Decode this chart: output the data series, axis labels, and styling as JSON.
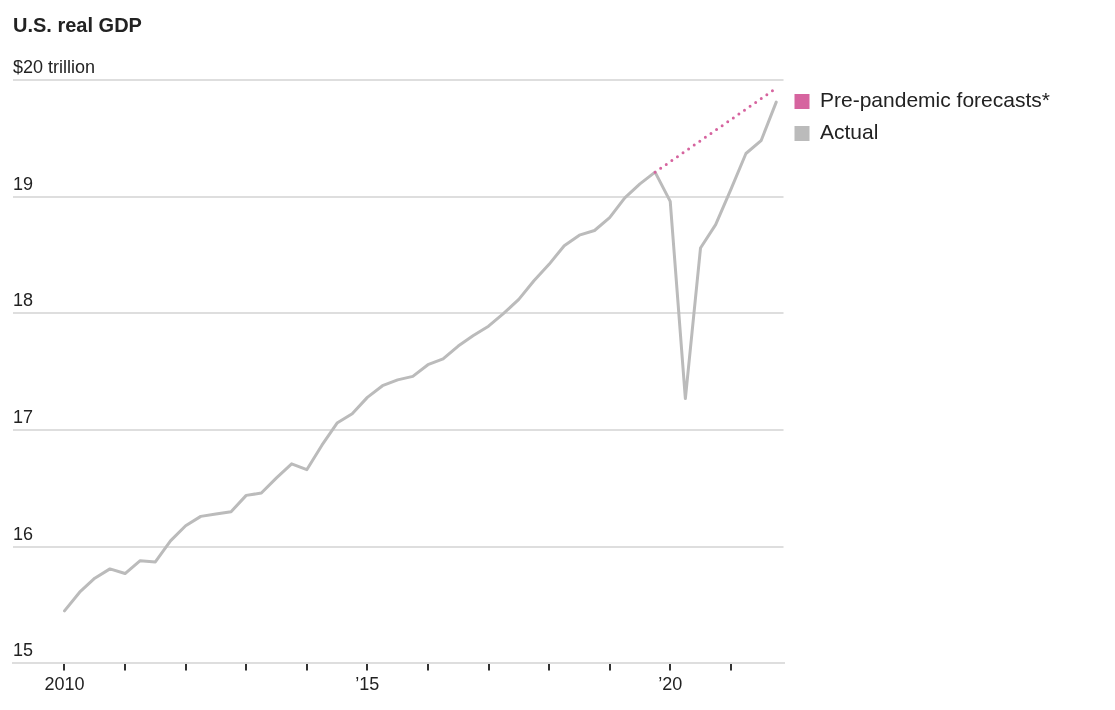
{
  "chart_data": {
    "type": "line",
    "title": "U.S. real GDP",
    "xlim": [
      2009.15,
      2021.87
    ],
    "xticks": [
      2010,
      {
        "value": 2011,
        "label": null
      },
      {
        "value": 2012,
        "label": null
      },
      {
        "value": 2013,
        "label": null
      },
      {
        "value": 2014,
        "label": null
      },
      {
        "value": 2015,
        "label": "’15"
      },
      {
        "value": 2016,
        "label": null
      },
      {
        "value": 2017,
        "label": null
      },
      {
        "value": 2018,
        "label": null
      },
      {
        "value": 2019,
        "label": null
      },
      {
        "value": 2020,
        "label": "’20"
      },
      {
        "value": 2021,
        "label": null
      }
    ],
    "ylim": [
      15,
      20
    ],
    "yticks": [
      15,
      16,
      17,
      18,
      19,
      {
        "value": 20,
        "label": "$20 trillion"
      }
    ],
    "grid": "y",
    "legend": "right",
    "marker": "none",
    "series": [
      {
        "name": "Pre-pandemic forecasts*",
        "color": "#d6649f",
        "line_style": "dotted",
        "x": [
          2019.75,
          2021.75
        ],
        "values": [
          19.21,
          19.93
        ]
      },
      {
        "name": "Actual",
        "color": "#bbbbbb",
        "line_style": "solid",
        "x": [
          2010,
          2010.25,
          2010.5,
          2010.75,
          2011,
          2011.25,
          2011.5,
          2011.75,
          2012,
          2012.25,
          2012.5,
          2012.75,
          2013,
          2013.25,
          2013.5,
          2013.75,
          2014,
          2014.25,
          2014.5,
          2014.75,
          2015,
          2015.25,
          2015.5,
          2015.75,
          2016,
          2016.25,
          2016.5,
          2016.75,
          2017,
          2017.25,
          2017.5,
          2017.75,
          2018,
          2018.25,
          2018.5,
          2018.75,
          2019,
          2019.25,
          2019.5,
          2019.75,
          2020,
          2020.25,
          2020.5,
          2020.75,
          2021,
          2021.25,
          2021.5,
          2021.75
        ],
        "values": [
          15.45,
          15.61,
          15.73,
          15.81,
          15.77,
          15.88,
          15.87,
          16.05,
          16.18,
          16.26,
          16.28,
          16.3,
          16.44,
          16.46,
          16.59,
          16.71,
          16.66,
          16.87,
          17.06,
          17.14,
          17.28,
          17.38,
          17.43,
          17.46,
          17.56,
          17.61,
          17.72,
          17.81,
          17.89,
          18.0,
          18.12,
          18.28,
          18.42,
          18.58,
          18.67,
          18.71,
          18.82,
          18.99,
          19.11,
          19.21,
          18.96,
          17.27,
          18.56,
          18.76,
          19.06,
          19.37,
          19.48,
          19.81
        ]
      }
    ]
  }
}
